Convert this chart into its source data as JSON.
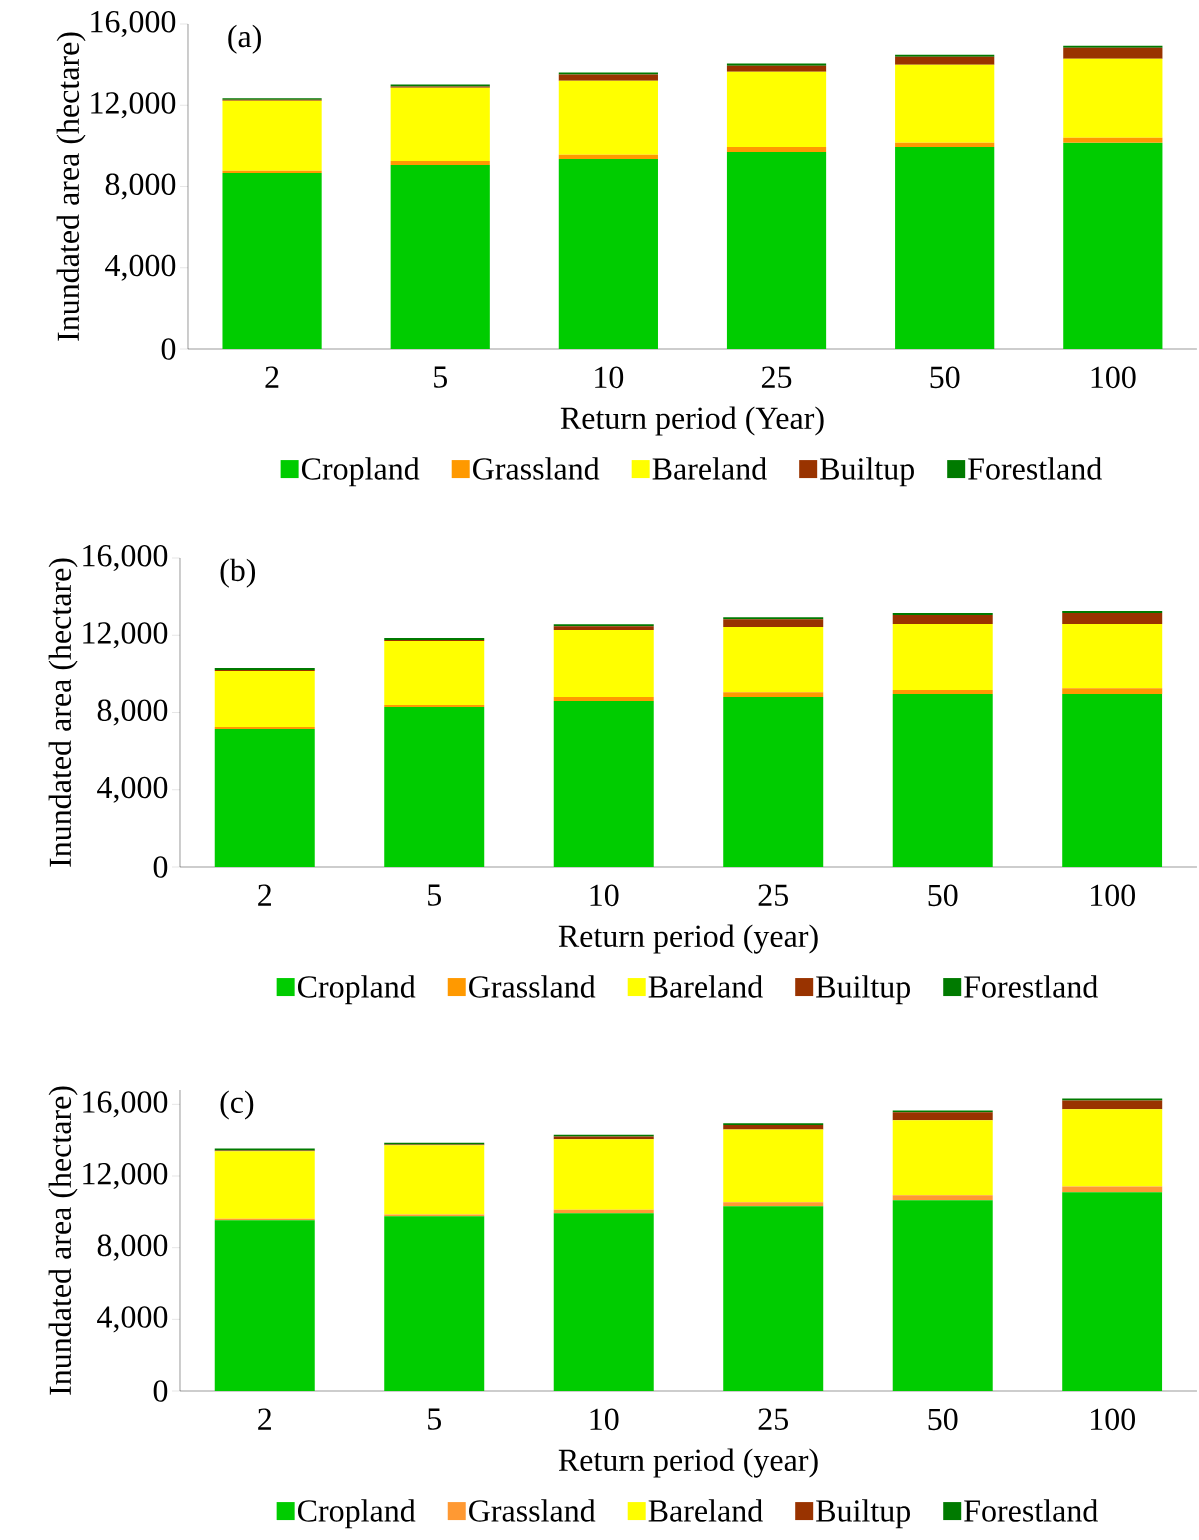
{
  "chart_data": [
    {
      "type": "bar",
      "stacked": true,
      "title": "(a)",
      "xlabel": "Return period (Year)",
      "ylabel": "Inundated area (hectare)",
      "categories": [
        "2",
        "5",
        "10",
        "25",
        "50",
        "100"
      ],
      "legend": "bottom",
      "ylim": [
        0,
        16000
      ],
      "yticks": [
        0,
        {
          "value": 4000,
          "label": "4,000"
        },
        {
          "value": 8000,
          "label": "8,000"
        },
        {
          "value": 12000,
          "label": "12,000"
        },
        {
          "value": 16000,
          "label": "16,000"
        }
      ],
      "series": [
        {
          "name": "Cropland",
          "color": "#00cc00",
          "values": [
            8670,
            9060,
            9360,
            9700,
            9950,
            10150
          ]
        },
        {
          "name": "Grassland",
          "color": "#ff9900",
          "values": [
            100,
            200,
            200,
            250,
            200,
            250
          ]
        },
        {
          "name": "Bareland",
          "color": "#ffff00",
          "values": [
            3450,
            3600,
            3650,
            3700,
            3840,
            3890
          ]
        },
        {
          "name": "Builtup",
          "color": "#993300",
          "values": [
            50,
            60,
            300,
            300,
            400,
            540
          ]
        },
        {
          "name": "Forestland",
          "color": "#007a00",
          "values": [
            80,
            100,
            100,
            100,
            100,
            100
          ]
        }
      ]
    },
    {
      "type": "bar",
      "stacked": true,
      "title": "(b)",
      "xlabel": "Return period (year)",
      "ylabel": "Inundated area (hectare)",
      "categories": [
        "2",
        "5",
        "10",
        "25",
        "50",
        "100"
      ],
      "legend": "bottom",
      "ylim": [
        0,
        16000
      ],
      "yticks": [
        0,
        {
          "value": 4000,
          "label": "4,000"
        },
        {
          "value": 8000,
          "label": "8,000"
        },
        {
          "value": 12000,
          "label": "12,000"
        },
        {
          "value": 16000,
          "label": "16,000"
        }
      ],
      "series": [
        {
          "name": "Cropland",
          "color": "#00cc00",
          "values": [
            7150,
            8290,
            8600,
            8800,
            8960,
            8960
          ]
        },
        {
          "name": "Grassland",
          "color": "#ff9900",
          "values": [
            100,
            100,
            200,
            250,
            200,
            300
          ]
        },
        {
          "name": "Bareland",
          "color": "#ffff00",
          "values": [
            2900,
            3310,
            3470,
            3380,
            3420,
            3320
          ]
        },
        {
          "name": "Builtup",
          "color": "#993300",
          "values": [
            50,
            60,
            200,
            400,
            470,
            570
          ]
        },
        {
          "name": "Forestland",
          "color": "#007a00",
          "values": [
            100,
            100,
            100,
            100,
            100,
            100
          ]
        }
      ]
    },
    {
      "type": "bar",
      "stacked": true,
      "title": "(c)",
      "xlabel": "Return period (year)",
      "ylabel": "Inundated area (hectare)",
      "categories": [
        "2",
        "5",
        "10",
        "25",
        "50",
        "100"
      ],
      "legend": "bottom",
      "ylim": [
        0,
        16800
      ],
      "yticks": [
        0,
        {
          "value": 4000,
          "label": "4,000"
        },
        {
          "value": 8000,
          "label": "8,000"
        },
        {
          "value": 12000,
          "label": "12,000"
        },
        {
          "value": 16000,
          "label": "16,000"
        }
      ],
      "series": [
        {
          "name": "Cropland",
          "color": "#00cc00",
          "values": [
            9530,
            9750,
            9920,
            10310,
            10650,
            11090
          ]
        },
        {
          "name": "Grassland",
          "color": "#ff9933",
          "values": [
            80,
            100,
            200,
            230,
            280,
            330
          ]
        },
        {
          "name": "Bareland",
          "color": "#ffff00",
          "values": [
            3770,
            3860,
            3930,
            4060,
            4180,
            4300
          ]
        },
        {
          "name": "Builtup",
          "color": "#993300",
          "values": [
            50,
            50,
            150,
            250,
            450,
            500
          ]
        },
        {
          "name": "Forestland",
          "color": "#007a00",
          "values": [
            100,
            100,
            100,
            100,
            100,
            100
          ]
        }
      ]
    }
  ]
}
